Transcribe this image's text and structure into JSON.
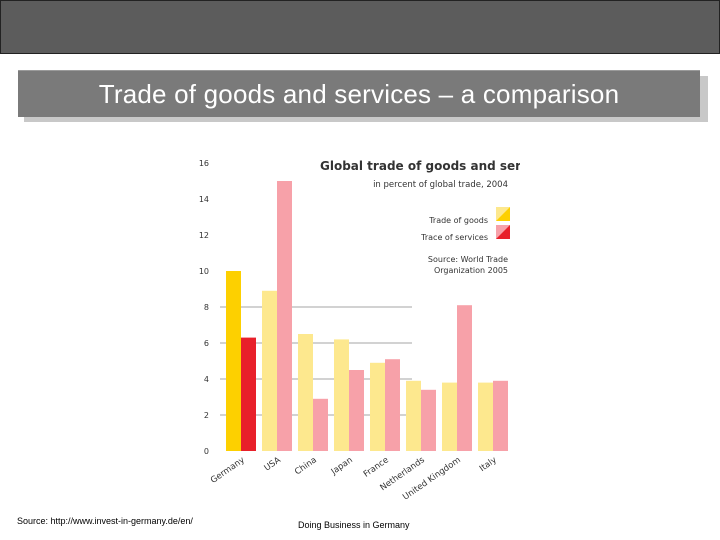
{
  "slide": {
    "title": "Trade of goods and services – a comparison",
    "footer_source": "Source: http://www.invest-in-germany.de/en/",
    "footer_center": "Doing Business in Germany"
  },
  "colors": {
    "goods": "#fde88e",
    "services": "#f7a1a9",
    "goods_highlight": "#fdd000",
    "services_highlight": "#e8202a",
    "grid": "#888888"
  },
  "chart_data": {
    "type": "bar",
    "title": "Global trade of goods and services",
    "subtitle": "in percent of global trade, 2004",
    "source_note": [
      "Source: World Trade",
      "Organization 2005"
    ],
    "categories": [
      "Germany",
      "USA",
      "China",
      "Japan",
      "France",
      "Netherlands",
      "United Kingdom",
      "Italy"
    ],
    "series": [
      {
        "name": "Trade of goods",
        "values": [
          10.0,
          8.9,
          6.5,
          6.2,
          4.9,
          3.9,
          3.8,
          3.8
        ]
      },
      {
        "name": "Trace of services",
        "values": [
          6.3,
          15.0,
          2.9,
          4.5,
          5.1,
          3.4,
          8.1,
          3.9
        ]
      }
    ],
    "highlight_category": "Germany",
    "ylim": [
      0,
      16
    ],
    "yticks": [
      "0",
      "2",
      "4",
      "6",
      "8",
      "10",
      "12",
      "14",
      "16"
    ],
    "xlabel": "",
    "ylabel": ""
  }
}
